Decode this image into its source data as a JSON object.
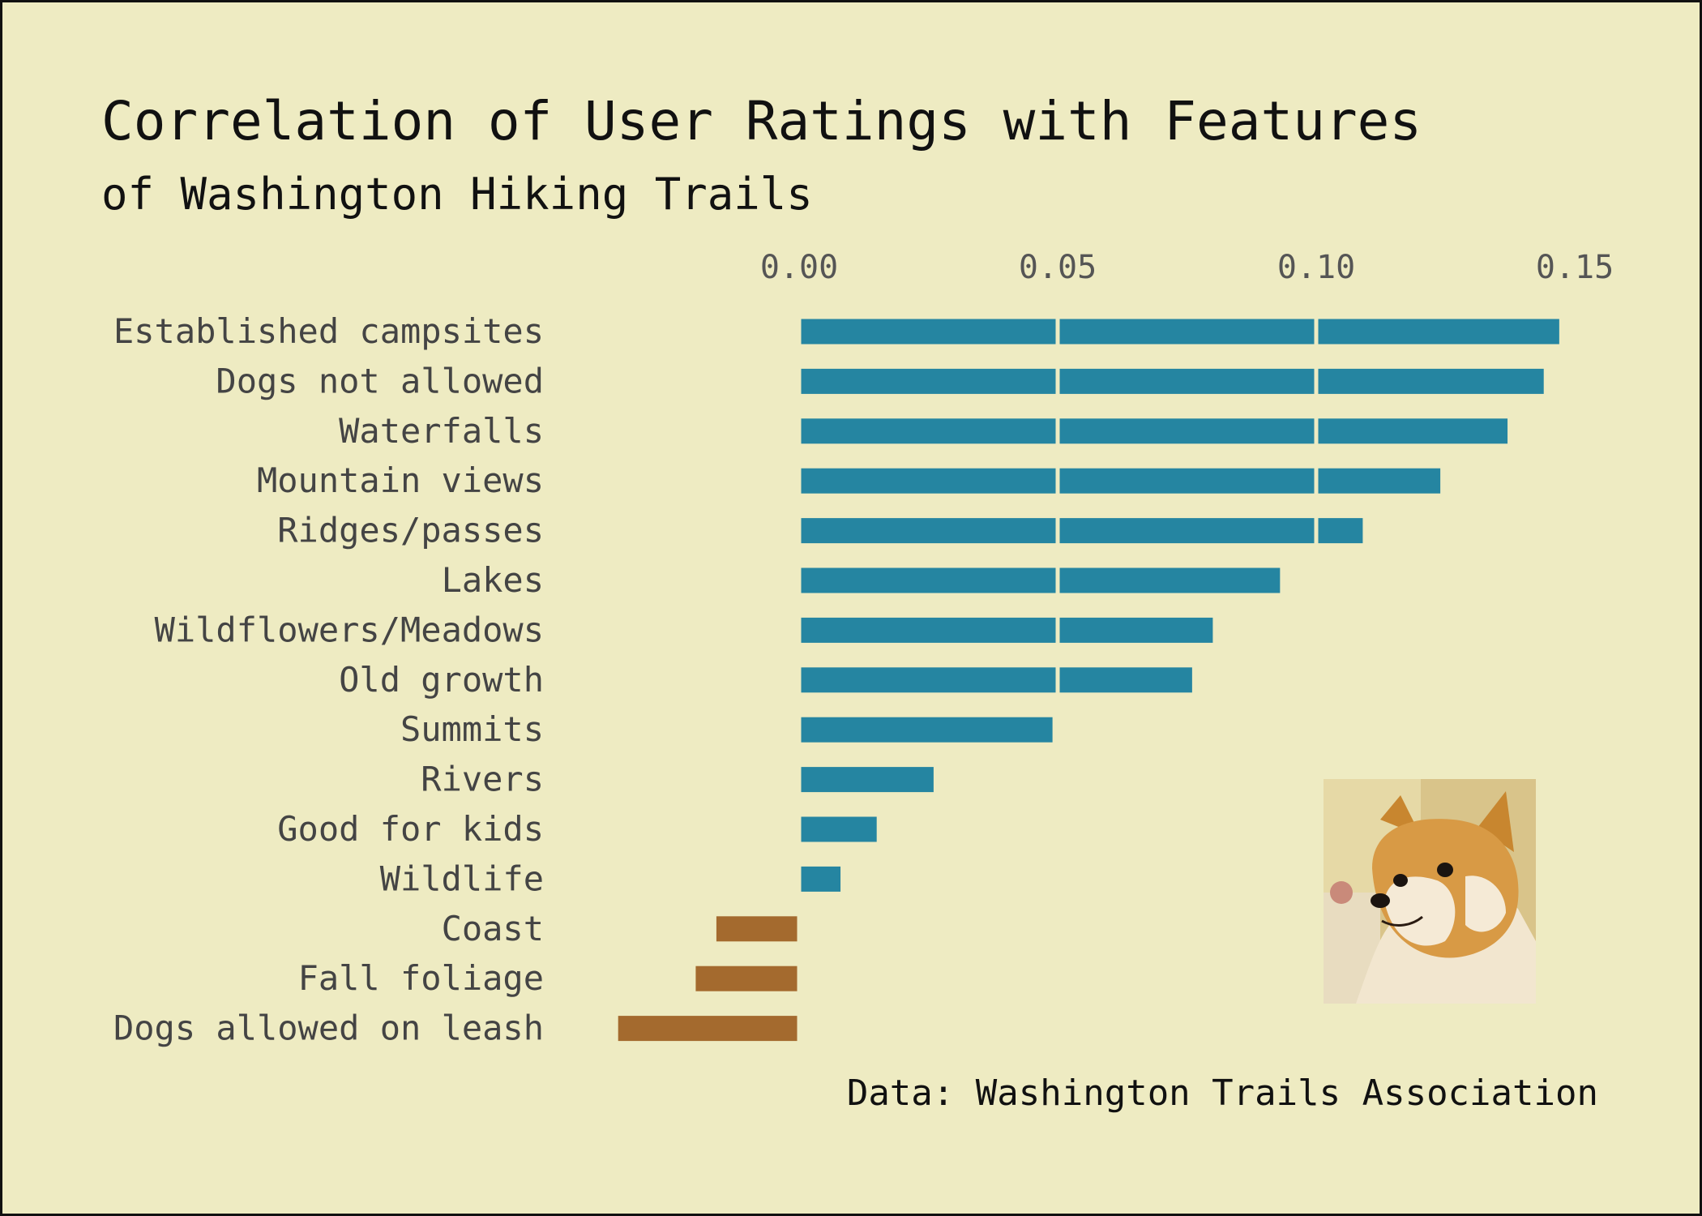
{
  "title": "Correlation of User Ratings with Features",
  "subtitle": "of Washington Hiking Trails",
  "source": "Data: Washington Trails Association",
  "colors": {
    "background": "#eeebc2",
    "positive": "#2585a1",
    "negative": "#a46a2e"
  },
  "image": {
    "name": "shiba-inu-dog-photo"
  },
  "chart_data": {
    "type": "bar",
    "orientation": "horizontal",
    "categories": [
      "Established campsites",
      "Dogs not allowed",
      "Waterfalls",
      "Mountain views",
      "Ridges/passes",
      "Lakes",
      "Wildflowers/Meadows",
      "Old growth",
      "Summits",
      "Rivers",
      "Good for kids",
      "Wildlife",
      "Coast",
      "Fall foliage",
      "Dogs allowed on leash"
    ],
    "values": [
      0.147,
      0.144,
      0.137,
      0.124,
      0.109,
      0.093,
      0.08,
      0.076,
      0.049,
      0.026,
      0.015,
      0.008,
      -0.016,
      -0.02,
      -0.035
    ],
    "xlim": [
      -0.035,
      0.15
    ],
    "xticks": [
      "0.00",
      "0.05",
      "0.10",
      "0.15"
    ],
    "xtick_values": [
      0.0,
      0.05,
      0.1,
      0.15
    ],
    "xaxis_position": "top",
    "grid": true
  }
}
